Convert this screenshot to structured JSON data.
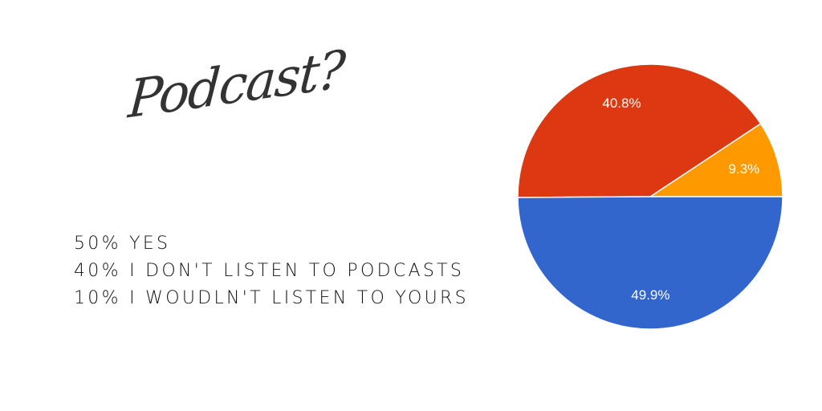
{
  "title": "Podcast?",
  "legend_lines": [
    "50% YES",
    "40% I DON'T LISTEN TO PODCASTS",
    "10% I WOUDLN'T LISTEN TO YOURS"
  ],
  "chart_data": {
    "type": "pie",
    "slices": [
      {
        "value": 9.3,
        "label": "9.3%",
        "color": "#FF9900"
      },
      {
        "value": 40.8,
        "label": "40.8%",
        "color": "#DC3912"
      },
      {
        "value": 49.9,
        "label": "49.9%",
        "color": "#3366CC"
      }
    ]
  }
}
